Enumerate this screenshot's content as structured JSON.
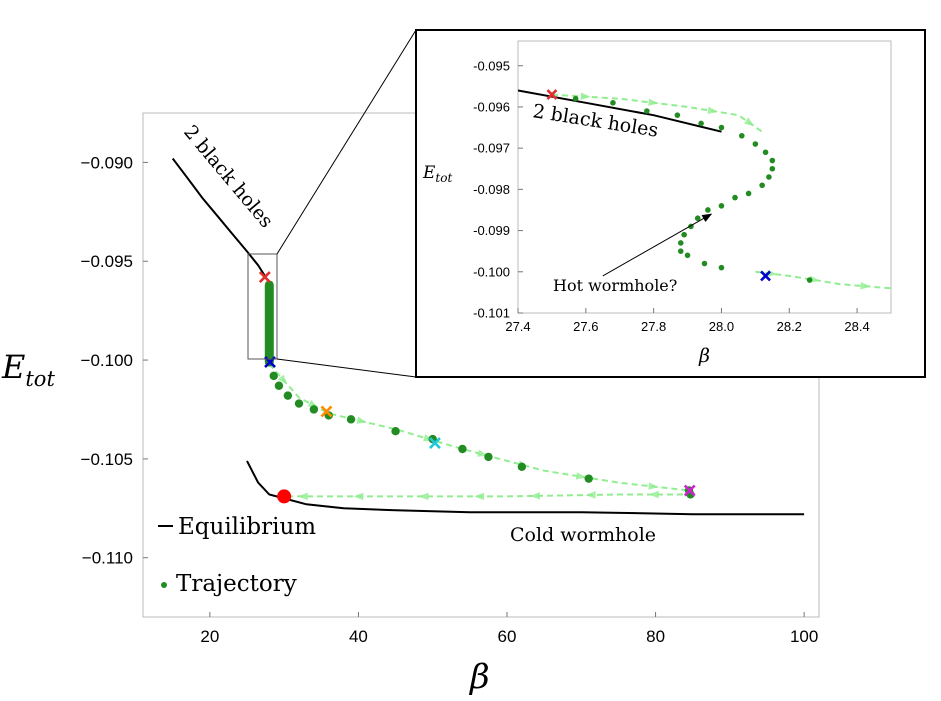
{
  "chart_data": [
    {
      "type": "scatter",
      "xlabel": "β",
      "ylabel_main": "E",
      "ylabel_sub": "tot",
      "xlim": [
        11,
        102
      ],
      "ylim": [
        -0.113,
        -0.0875
      ],
      "x_ticks": [
        20,
        40,
        60,
        80,
        100
      ],
      "y_ticks": [
        -0.09,
        -0.095,
        -0.1,
        -0.105,
        -0.11
      ],
      "x_tick_labels": [
        "20",
        "40",
        "60",
        "80",
        "100"
      ],
      "y_tick_labels": [
        "−0.090",
        "−0.095",
        "−0.100",
        "−0.105",
        "−0.110"
      ],
      "legend": {
        "placement": "bottom-left",
        "entries": [
          {
            "label": "Equilibrium",
            "marker": "line",
            "color": "#000000"
          },
          {
            "label": "Trajectory",
            "marker": "dot",
            "color": "#228b22"
          }
        ]
      },
      "annotations": [
        {
          "text": "2 black holes",
          "x": 22,
          "y": -0.0915
        },
        {
          "text": "Cold wormhole",
          "x": 66,
          "y": -0.1079
        }
      ],
      "series": [
        {
          "name": "Equilibrium",
          "color": "#000000",
          "branches": [
            [
              [
                15,
                -0.0898
              ],
              [
                17,
                -0.0908
              ],
              [
                19,
                -0.0918
              ],
              [
                21,
                -0.0927
              ],
              [
                23,
                -0.0936
              ],
              [
                25,
                -0.0945
              ],
              [
                26.5,
                -0.0952
              ],
              [
                27.5,
                -0.0958
              ]
            ],
            [
              [
                25,
                -0.1051
              ],
              [
                26.5,
                -0.1062
              ],
              [
                28,
                -0.1068
              ],
              [
                30,
                -0.107
              ],
              [
                33,
                -0.1073
              ],
              [
                38,
                -0.1075
              ],
              [
                45,
                -0.1076
              ],
              [
                55,
                -0.1077
              ],
              [
                70,
                -0.1077
              ],
              [
                85,
                -0.1078
              ],
              [
                100,
                -0.1078
              ]
            ]
          ]
        },
        {
          "name": "Trajectory",
          "color": "#228b22",
          "vertical_band": {
            "x": 28,
            "y_from": -0.0962,
            "y_to": -0.1001
          },
          "points": [
            [
              28.6,
              -0.1008
            ],
            [
              29.3,
              -0.1013
            ],
            [
              30.5,
              -0.1018
            ],
            [
              32,
              -0.1022
            ],
            [
              34,
              -0.1025
            ],
            [
              36,
              -0.1028
            ],
            [
              39,
              -0.103
            ],
            [
              45,
              -0.1036
            ],
            [
              50,
              -0.104
            ],
            [
              54,
              -0.1045
            ],
            [
              57.5,
              -0.1049
            ],
            [
              62,
              -0.1054
            ],
            [
              71,
              -0.106
            ],
            [
              84.5,
              -0.1066
            ],
            [
              84.7,
              -0.1068
            ]
          ]
        }
      ],
      "path_lines": [
        {
          "color": "#90ee90",
          "style": "dashed",
          "points": [
            [
              28,
              -0.1002
            ],
            [
              32,
              -0.1019
            ],
            [
              36,
              -0.1027
            ],
            [
              45,
              -0.1035
            ],
            [
              54,
              -0.1045
            ],
            [
              65,
              -0.1056
            ],
            [
              75,
              -0.1062
            ],
            [
              84.5,
              -0.1066
            ]
          ]
        },
        {
          "color": "#90ee90",
          "style": "dashed",
          "points": [
            [
              84.5,
              -0.1066
            ],
            [
              84.5,
              -0.1068
            ],
            [
              75,
              -0.1068
            ],
            [
              60,
              -0.1069
            ],
            [
              45,
              -0.1069
            ],
            [
              35,
              -0.1069
            ],
            [
              30,
              -0.1069
            ]
          ]
        }
      ],
      "markers": [
        {
          "shape": "x",
          "color": "#e03030",
          "x": 27.4,
          "y": -0.0958
        },
        {
          "shape": "x",
          "color": "#0000cc",
          "x": 28.1,
          "y": -0.1001
        },
        {
          "shape": "x",
          "color": "#ff8c00",
          "x": 35.7,
          "y": -0.1026
        },
        {
          "shape": "x",
          "color": "#20c8d8",
          "x": 50.3,
          "y": -0.1042
        },
        {
          "shape": "x",
          "color": "#d020d0",
          "x": 84.6,
          "y": -0.1066
        },
        {
          "shape": "dot",
          "color": "#ff0000",
          "x": 30,
          "y": -0.1069
        }
      ]
    },
    {
      "type": "scatter",
      "xlabel": "β",
      "ylabel_main": "E",
      "ylabel_sub": "tot",
      "xlim": [
        27.4,
        28.5
      ],
      "ylim": [
        -0.101,
        -0.0944
      ],
      "x_ticks": [
        27.4,
        27.6,
        27.8,
        28.0,
        28.2,
        28.4
      ],
      "y_ticks": [
        -0.095,
        -0.096,
        -0.097,
        -0.098,
        -0.099,
        -0.1,
        -0.101
      ],
      "x_tick_labels": [
        "27.4",
        "27.6",
        "27.8",
        "28.0",
        "28.2",
        "28.4"
      ],
      "y_tick_labels": [
        "-0.095",
        "-0.096",
        "-0.097",
        "-0.098",
        "-0.099",
        "-0.100",
        "-0.101"
      ],
      "annotations": [
        {
          "text": "2 black holes",
          "x": 27.64,
          "y": -0.09685
        },
        {
          "text": "Hot wormhole?",
          "x": 27.74,
          "y": -0.10045
        }
      ],
      "series": [
        {
          "name": "Equilibrium",
          "color": "#000000",
          "points": [
            [
              27.4,
              -0.0956
            ],
            [
              27.6,
              -0.0959
            ],
            [
              27.8,
              -0.0962
            ],
            [
              28.0,
              -0.0966
            ]
          ]
        },
        {
          "name": "Trajectory",
          "color": "#228b22",
          "points": [
            [
              27.57,
              -0.0958
            ],
            [
              27.68,
              -0.0959
            ],
            [
              27.78,
              -0.0961
            ],
            [
              27.87,
              -0.0962
            ],
            [
              27.94,
              -0.0964
            ],
            [
              28.0,
              -0.0965
            ],
            [
              28.06,
              -0.0967
            ],
            [
              28.1,
              -0.0969
            ],
            [
              28.13,
              -0.0971
            ],
            [
              28.15,
              -0.0973
            ],
            [
              28.15,
              -0.0975
            ],
            [
              28.14,
              -0.0977
            ],
            [
              28.12,
              -0.0979
            ],
            [
              28.08,
              -0.0981
            ],
            [
              28.04,
              -0.0982
            ],
            [
              28.0,
              -0.0984
            ],
            [
              27.96,
              -0.0985
            ],
            [
              27.93,
              -0.0987
            ],
            [
              27.91,
              -0.0989
            ],
            [
              27.89,
              -0.0991
            ],
            [
              27.88,
              -0.0993
            ],
            [
              27.88,
              -0.0995
            ],
            [
              27.9,
              -0.0996
            ],
            [
              27.95,
              -0.0998
            ],
            [
              28.0,
              -0.0999
            ],
            [
              28.26,
              -0.1002
            ]
          ]
        }
      ],
      "path_lines": [
        {
          "color": "#90ee90",
          "style": "dashed",
          "points": [
            [
              27.5,
              -0.0957
            ],
            [
              27.7,
              -0.0958
            ],
            [
              27.9,
              -0.096
            ],
            [
              28.05,
              -0.0962
            ],
            [
              28.12,
              -0.0966
            ]
          ]
        },
        {
          "color": "#90ee90",
          "style": "dashed",
          "points": [
            [
              28.1,
              -0.1
            ],
            [
              28.2,
              -0.1001
            ],
            [
              28.35,
              -0.1003
            ],
            [
              28.5,
              -0.1004
            ]
          ]
        }
      ],
      "markers": [
        {
          "shape": "x",
          "color": "#e03030",
          "x": 27.5,
          "y": -0.0957
        },
        {
          "shape": "x",
          "color": "#0000cc",
          "x": 28.13,
          "y": -0.1001
        }
      ],
      "arrow": {
        "from": [
          27.65,
          -0.1001
        ],
        "to": [
          27.97,
          -0.0986
        ]
      }
    }
  ]
}
